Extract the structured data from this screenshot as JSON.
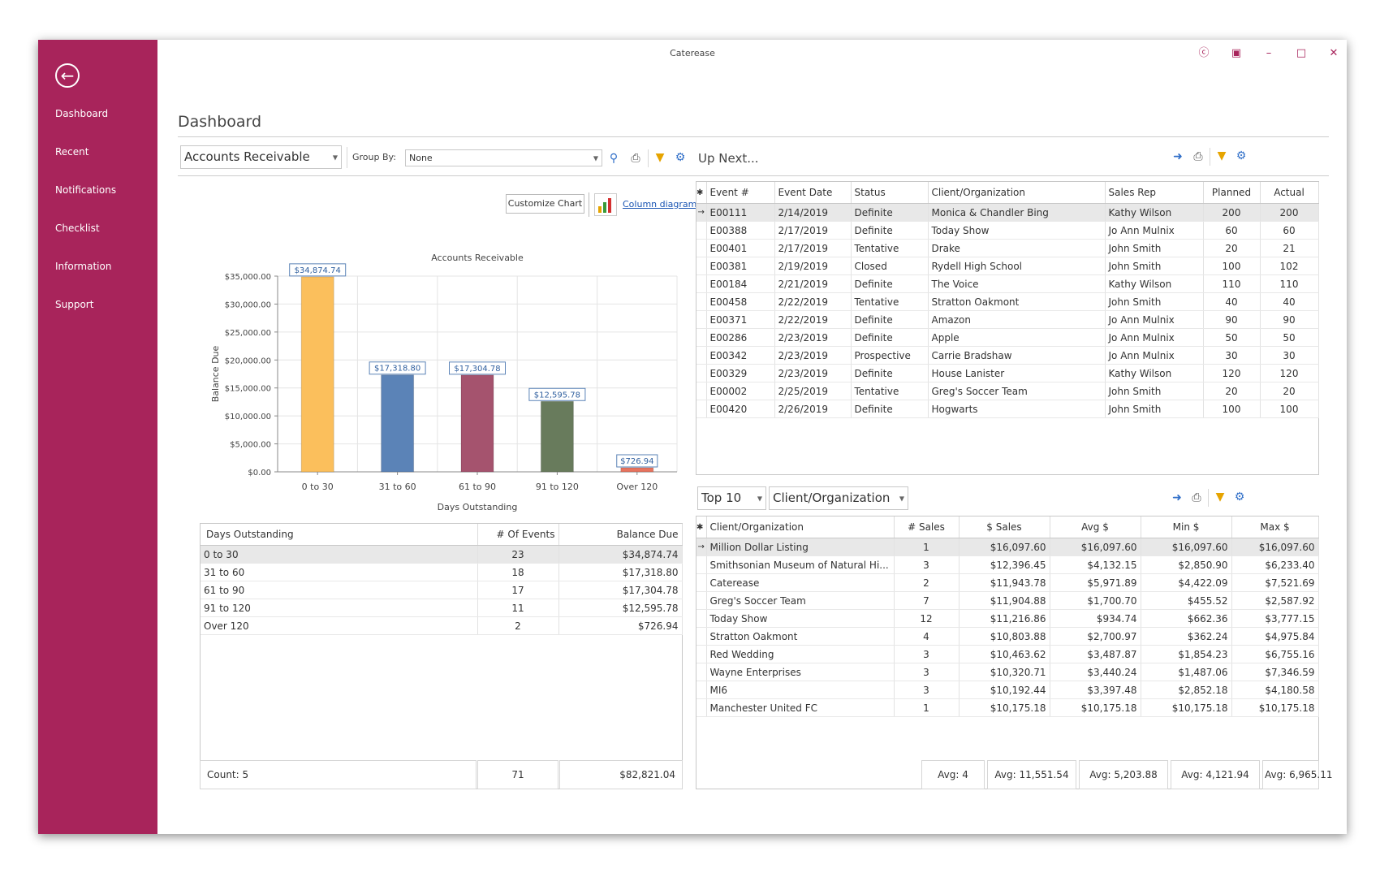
{
  "window": {
    "title": "Caterease"
  },
  "sidebar": {
    "items": [
      {
        "label": "Dashboard"
      },
      {
        "label": "Recent"
      },
      {
        "label": "Notifications"
      },
      {
        "label": "Checklist"
      },
      {
        "label": "Information"
      },
      {
        "label": "Support"
      }
    ]
  },
  "page": {
    "title": "Dashboard"
  },
  "left_panel": {
    "report_select": "Accounts Receivable",
    "group_by_label": "Group By:",
    "group_by_value": "None",
    "customize_chart": "Customize Chart",
    "column_diagram": "Column diagram"
  },
  "chart_data": {
    "type": "bar",
    "title": "Accounts Receivable",
    "xlabel": "Days Outstanding",
    "ylabel": "Balance Due",
    "categories": [
      "0 to 30",
      "31 to 60",
      "61 to 90",
      "91 to 120",
      "Over 120"
    ],
    "values": [
      34874.74,
      17318.8,
      17304.78,
      12595.78,
      726.94
    ],
    "value_labels": [
      "$34,874.74",
      "$17,318.80",
      "$17,304.78",
      "$12,595.78",
      "$726.94"
    ],
    "colors": [
      "#fbbf5c",
      "#5b83b7",
      "#a5536e",
      "#687b5c",
      "#e7735e"
    ],
    "ylim": [
      0,
      35000
    ],
    "yticks": [
      "$0.00",
      "$5,000.00",
      "$10,000.00",
      "$15,000.00",
      "$20,000.00",
      "$25,000.00",
      "$30,000.00",
      "$35,000.00"
    ],
    "grid": true,
    "legend": "bottom"
  },
  "ar_table": {
    "headers": [
      "Days Outstanding",
      "# Of Events",
      "Balance Due"
    ],
    "rows": [
      [
        "0 to 30",
        "23",
        "$34,874.74"
      ],
      [
        "31 to 60",
        "18",
        "$17,318.80"
      ],
      [
        "61 to 90",
        "17",
        "$17,304.78"
      ],
      [
        "91 to 120",
        "11",
        "$12,595.78"
      ],
      [
        "Over 120",
        "2",
        "$726.94"
      ]
    ],
    "footer": [
      "Count:  5",
      "71",
      "$82,821.04"
    ]
  },
  "up_next": {
    "title": "Up Next...",
    "headers": [
      "Event #",
      "Event Date",
      "Status",
      "Client/Organization",
      "Sales Rep",
      "Planned",
      "Actual"
    ],
    "rows": [
      [
        "E00111",
        "2/14/2019",
        "Definite",
        "Monica & Chandler Bing",
        "Kathy Wilson",
        "200",
        "200"
      ],
      [
        "E00388",
        "2/17/2019",
        "Definite",
        "Today Show",
        "Jo Ann Mulnix",
        "60",
        "60"
      ],
      [
        "E00401",
        "2/17/2019",
        "Tentative",
        "Drake",
        "John Smith",
        "20",
        "21"
      ],
      [
        "E00381",
        "2/19/2019",
        "Closed",
        "Rydell High School",
        "John Smith",
        "100",
        "102"
      ],
      [
        "E00184",
        "2/21/2019",
        "Definite",
        "The Voice",
        "Kathy Wilson",
        "110",
        "110"
      ],
      [
        "E00458",
        "2/22/2019",
        "Tentative",
        "Stratton Oakmont",
        "John Smith",
        "40",
        "40"
      ],
      [
        "E00371",
        "2/22/2019",
        "Definite",
        "Amazon",
        "Jo Ann Mulnix",
        "90",
        "90"
      ],
      [
        "E00286",
        "2/23/2019",
        "Definite",
        "Apple",
        "Jo Ann Mulnix",
        "50",
        "50"
      ],
      [
        "E00342",
        "2/23/2019",
        "Prospective",
        "Carrie Bradshaw",
        "Jo Ann Mulnix",
        "30",
        "30"
      ],
      [
        "E00329",
        "2/23/2019",
        "Definite",
        "House Lanister",
        "Kathy Wilson",
        "120",
        "120"
      ],
      [
        "E00002",
        "2/25/2019",
        "Tentative",
        "Greg's Soccer Team",
        "John Smith",
        "20",
        "20"
      ],
      [
        "E00420",
        "2/26/2019",
        "Definite",
        "Hogwarts",
        "John Smith",
        "100",
        "100"
      ]
    ]
  },
  "top10": {
    "count_select": "Top 10",
    "field_select": "Client/Organization",
    "headers": [
      "Client/Organization",
      "# Sales",
      "$ Sales",
      "Avg $",
      "Min $",
      "Max $"
    ],
    "rows": [
      [
        "Million Dollar Listing",
        "1",
        "$16,097.60",
        "$16,097.60",
        "$16,097.60",
        "$16,097.60"
      ],
      [
        "Smithsonian Museum of Natural Hi...",
        "3",
        "$12,396.45",
        "$4,132.15",
        "$2,850.90",
        "$6,233.40"
      ],
      [
        "Caterease",
        "2",
        "$11,943.78",
        "$5,971.89",
        "$4,422.09",
        "$7,521.69"
      ],
      [
        "Greg's Soccer Team",
        "7",
        "$11,904.88",
        "$1,700.70",
        "$455.52",
        "$2,587.92"
      ],
      [
        "Today Show",
        "12",
        "$11,216.86",
        "$934.74",
        "$662.36",
        "$3,777.15"
      ],
      [
        "Stratton Oakmont",
        "4",
        "$10,803.88",
        "$2,700.97",
        "$362.24",
        "$4,975.84"
      ],
      [
        "Red Wedding",
        "3",
        "$10,463.62",
        "$3,487.87",
        "$1,854.23",
        "$6,755.16"
      ],
      [
        "Wayne Enterprises",
        "3",
        "$10,320.71",
        "$3,440.24",
        "$1,487.06",
        "$7,346.59"
      ],
      [
        "MI6",
        "3",
        "$10,192.44",
        "$3,397.48",
        "$2,852.18",
        "$4,180.58"
      ],
      [
        "Manchester United FC",
        "1",
        "$10,175.18",
        "$10,175.18",
        "$10,175.18",
        "$10,175.18"
      ]
    ],
    "footer": [
      "Avg:  4",
      "Avg:  11,551.54",
      "Avg:  5,203.88",
      "Avg:  4,121.94",
      "Avg:  6,965.11"
    ]
  },
  "icons": {
    "arrow": "arrow-right-icon",
    "print": "printer-icon",
    "filter": "filter-icon",
    "settings": "gear-icon",
    "preview": "print-preview-icon"
  },
  "theme": {
    "accent": "#a8245b"
  }
}
